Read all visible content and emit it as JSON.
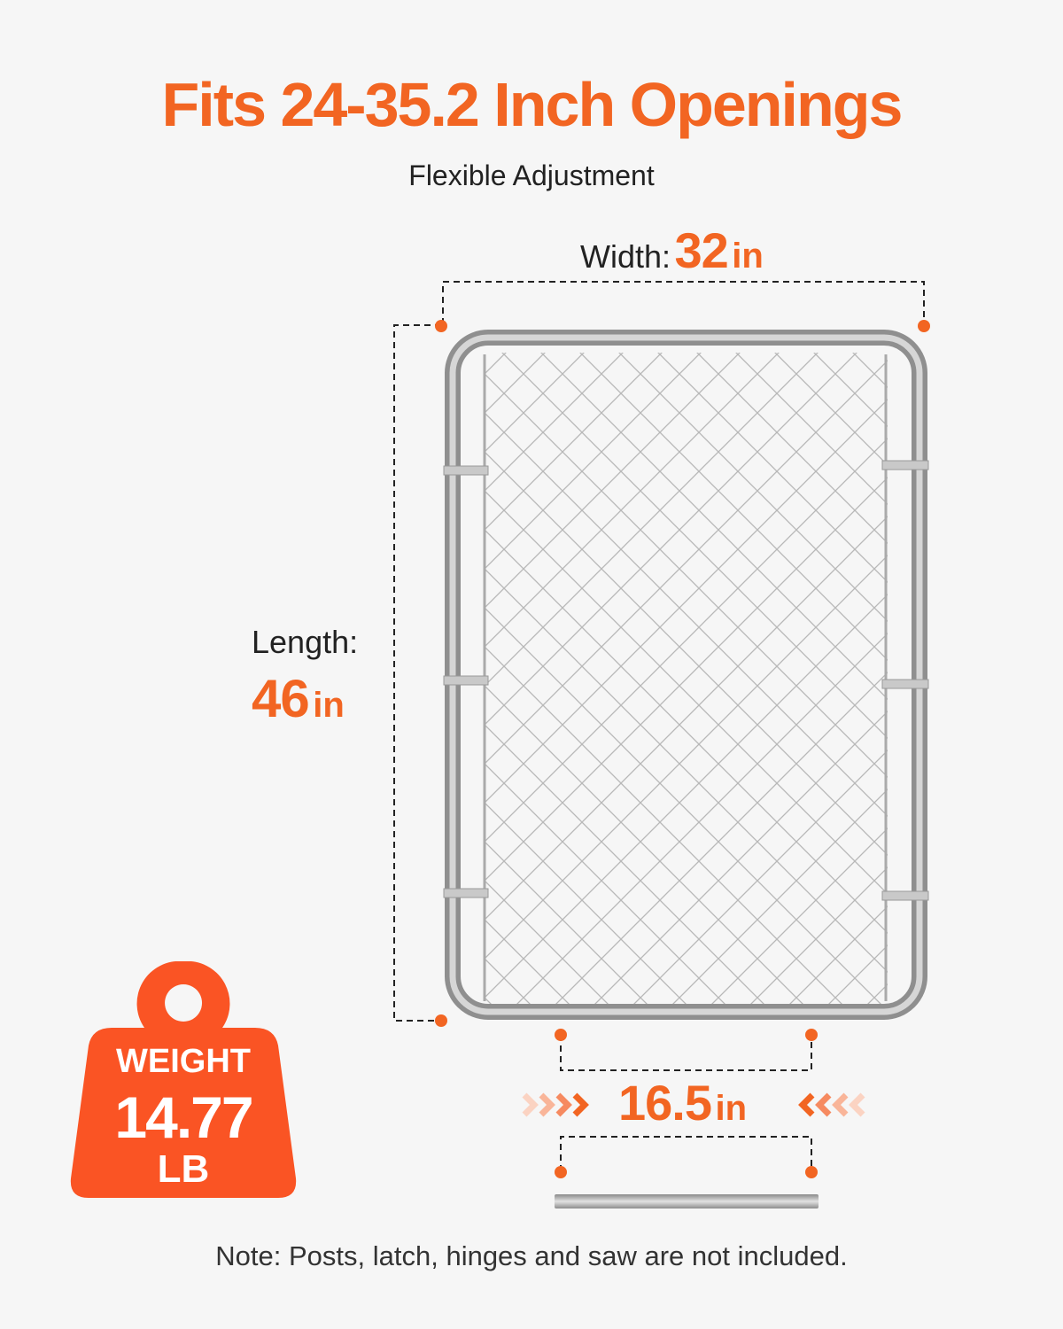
{
  "title": "Fits 24-35.2 Inch Openings",
  "subtitle": "Flexible Adjustment",
  "width": {
    "label": "Width:",
    "value": "32",
    "unit": "in"
  },
  "length": {
    "label": "Length:",
    "value": "46",
    "unit": "in"
  },
  "gap": {
    "value": "16.5",
    "unit": "in"
  },
  "weight": {
    "label": "WEIGHT",
    "value": "14.77",
    "unit": "LB"
  },
  "note": "Note: Posts, latch, hinges and saw are not included.",
  "colors": {
    "accent": "#f26522",
    "weight_badge": "#fa5424",
    "background": "#f6f6f6"
  },
  "icons": [
    "weight-icon",
    "chevron-right-arrows-icon",
    "chevron-left-arrows-icon"
  ]
}
